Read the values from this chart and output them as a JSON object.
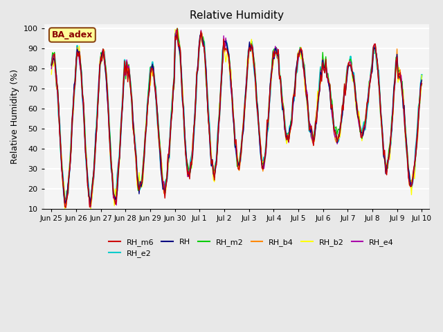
{
  "title": "Relative Humidity",
  "ylabel": "Relative Humidity (%)",
  "ylim": [
    10,
    102
  ],
  "yticks": [
    10,
    20,
    30,
    40,
    50,
    60,
    70,
    80,
    90,
    100
  ],
  "annotation_text": "BA_adex",
  "annotation_color": "#8B0000",
  "annotation_bg": "#FFFF99",
  "annotation_border": "#8B4513",
  "series_colors": {
    "RH_m6": "#CC0000",
    "RH": "#000080",
    "RH_m2": "#00CC00",
    "RH_b4": "#FF8800",
    "RH_b2": "#FFFF00",
    "RH_e4": "#AA00AA",
    "RH_e2": "#00CCCC"
  },
  "series_order": [
    "RH_e2",
    "RH_b2",
    "RH_m2",
    "RH_b4",
    "RH_e4",
    "RH",
    "RH_m6"
  ],
  "legend_order": [
    "RH_m6",
    "RH",
    "RH_m2",
    "RH_b4",
    "RH_b2",
    "RH_e4",
    "RH_e2"
  ],
  "background_color": "#E8E8E8",
  "plot_bg": "#F5F5F5",
  "grid_color": "white",
  "tick_labels": [
    "Jun 25",
    "Jun 26",
    "Jun 27",
    "Jun 28",
    "Jun 29",
    "Jun 30",
    "Jul 1",
    "Jul 2",
    "Jul 3",
    "Jul 4",
    "Jul 5",
    "Jul 6",
    "Jul 7",
    "Jul 8",
    "Jul 9",
    "Jul 10"
  ],
  "n_points": 360
}
